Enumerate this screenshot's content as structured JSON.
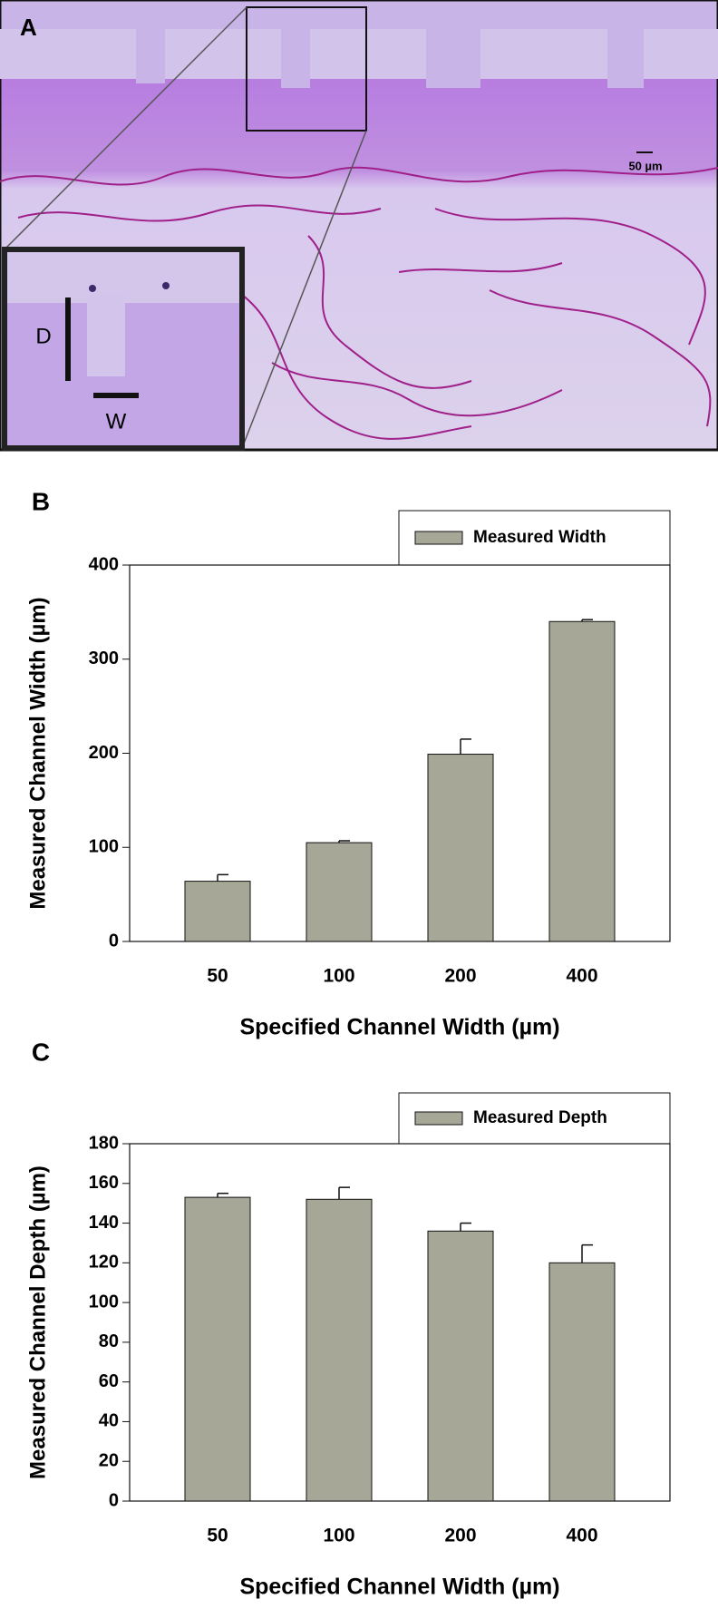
{
  "panel_a": {
    "panel_label": "A",
    "scale_bar": "50 µm",
    "inset_depth_label": "D",
    "inset_width_label": "W"
  },
  "chart_data": [
    {
      "type": "bar",
      "panel_label": "B",
      "xlabel": "Specified Channel Width (µm)",
      "ylabel": "Measured Channel Width (µm)",
      "categories": [
        "50",
        "100",
        "200",
        "400"
      ],
      "series": [
        {
          "name": "Measured Width",
          "color": "#a6a796",
          "values": [
            64,
            105,
            199,
            340
          ],
          "errors": [
            7,
            2,
            16,
            2
          ]
        }
      ],
      "ylim": [
        0,
        400
      ],
      "yticks": [
        0,
        100,
        200,
        300,
        400
      ],
      "grid": false,
      "legend": "top-right"
    },
    {
      "type": "bar",
      "panel_label": "C",
      "xlabel": "Specified Channel Width (µm)",
      "ylabel": "Measured Channel Depth (µm)",
      "categories": [
        "50",
        "100",
        "200",
        "400"
      ],
      "series": [
        {
          "name": "Measured Depth",
          "color": "#a6a796",
          "values": [
            153,
            152,
            136,
            120
          ],
          "errors": [
            2,
            6,
            4,
            9
          ]
        }
      ],
      "ylim": [
        0,
        180
      ],
      "yticks": [
        0,
        20,
        40,
        60,
        80,
        100,
        120,
        140,
        160,
        180
      ],
      "grid": false,
      "legend": "top-right"
    }
  ]
}
